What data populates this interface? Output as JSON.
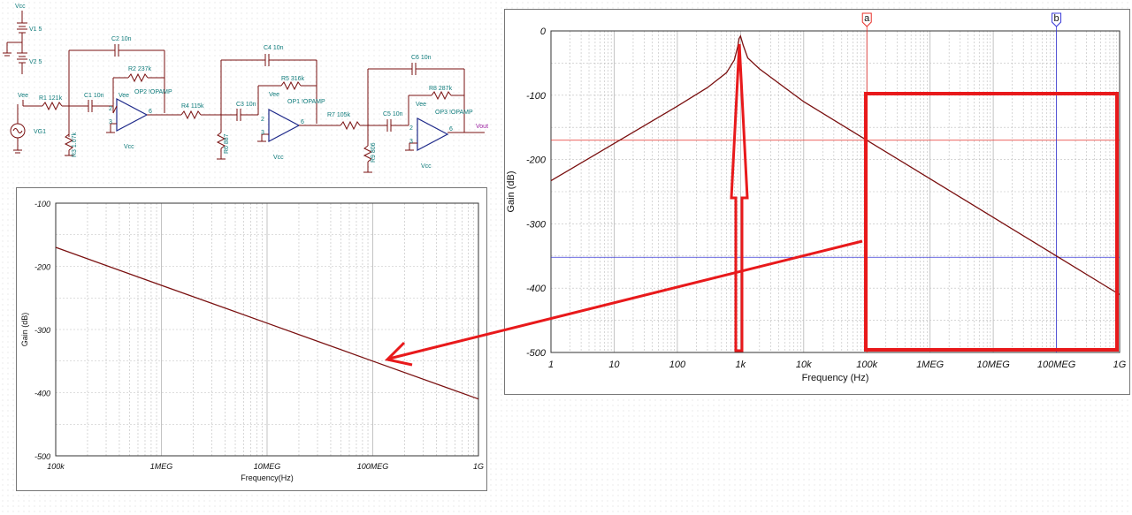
{
  "schematic": {
    "sources": {
      "v1": "V1 5",
      "v2": "V2 5",
      "vcc": "Vcc",
      "vee": "Vee",
      "vg1": "VG1",
      "vout": "Vout"
    },
    "stage1": {
      "c1": "C1 10n",
      "c2": "C2 10n",
      "r1": "R1 121k",
      "r2": "R2 237k",
      "r3": "R3 1.07k",
      "op": "OP2 !OPAMP",
      "vee": "Vee",
      "vcc": "Vcc"
    },
    "stage2": {
      "c3": "C3 10n",
      "c4": "C4 10n",
      "r4": "R4 115k",
      "r5": "R5 316k",
      "r6": "R6 887",
      "op": "OP1 !OPAMP",
      "vee": "Vee",
      "vcc": "Vcc"
    },
    "stage3": {
      "c5": "C5 10n",
      "c6": "C6 10n",
      "r7": "R7 105k",
      "r8": "R8 287k",
      "r9": "R9 806",
      "op": "OP3 !OPAMP",
      "vee": "Vee",
      "vcc": "Vcc"
    },
    "pins": [
      "2",
      "3",
      "6"
    ]
  },
  "colors": {
    "trace": "#7a1010",
    "cursor_a": "#e8302a",
    "cursor_b": "#3a3ad8",
    "annotation": "#e8191b",
    "grid": "#bdbdbd"
  },
  "chart_data": [
    {
      "id": "full_bode",
      "type": "line",
      "xscale": "log",
      "xlim": [
        1,
        1000000000
      ],
      "ylim": [
        -500,
        0
      ],
      "xlabel": "Frequency (Hz)",
      "ylabel": "Gain (dB)",
      "xtick_labels": [
        "1",
        "10",
        "100",
        "1k",
        "10k",
        "100k",
        "1MEG",
        "10MEG",
        "100MEG",
        "1G"
      ],
      "ytick_labels": [
        "0",
        "-100",
        "-200",
        "-300",
        "-400",
        "-500"
      ],
      "grid": true,
      "cursors": [
        {
          "label": "a",
          "x": 100000,
          "y": -170
        },
        {
          "label": "b",
          "x": 100000000,
          "y": -352
        }
      ],
      "series": [
        {
          "x": [
            1,
            10,
            100,
            300,
            600,
            800,
            900,
            950,
            1000,
            1100,
            1300,
            2000,
            10000,
            100000,
            1000000,
            10000000,
            100000000,
            1000000000
          ],
          "y": [
            -233,
            -175,
            -117,
            -88,
            -65,
            -45,
            -25,
            -12,
            -8,
            -22,
            -42,
            -59,
            -110,
            -170,
            -230,
            -290,
            -350,
            -410
          ]
        }
      ]
    },
    {
      "id": "zoom_bode",
      "type": "line",
      "xscale": "log",
      "xlim": [
        100000,
        1000000000
      ],
      "ylim": [
        -500,
        -100
      ],
      "xlabel": "Frequency(Hz)",
      "ylabel": "Gain (dB)",
      "xtick_labels": [
        "100k",
        "1MEG",
        "10MEG",
        "100MEG",
        "1G"
      ],
      "ytick_labels": [
        "-100",
        "-200",
        "-300",
        "-400",
        "-500"
      ],
      "grid": true,
      "series": [
        {
          "x": [
            100000,
            1000000,
            10000000,
            100000000,
            1000000000
          ],
          "y": [
            -170,
            -230,
            -290,
            -350,
            -410
          ]
        }
      ]
    }
  ]
}
